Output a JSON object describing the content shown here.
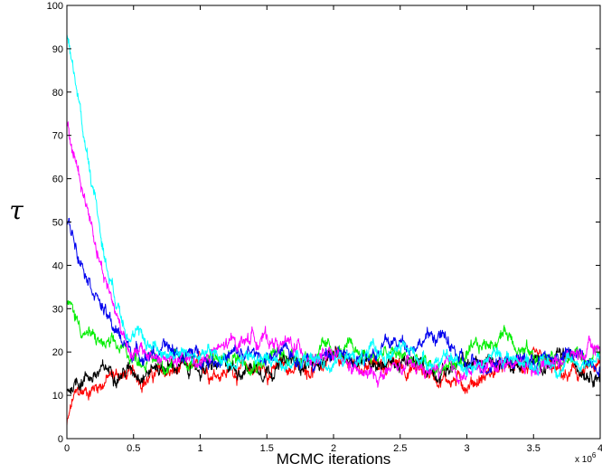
{
  "chart_data": {
    "type": "line",
    "xlabel": "MCMC iterations",
    "ylabel": "τ",
    "x_multiplier_label": "x 10",
    "x_multiplier_exponent": "6",
    "xlim": [
      0,
      4
    ],
    "ylim": [
      0,
      100
    ],
    "x_ticks": [
      0,
      0.5,
      1,
      1.5,
      2,
      2.5,
      3,
      3.5,
      4
    ],
    "x_tick_labels": [
      "0",
      "0.5",
      "1",
      "1.5",
      "2",
      "2.5",
      "3",
      "3.5",
      "4"
    ],
    "y_ticks": [
      0,
      10,
      20,
      30,
      40,
      50,
      60,
      70,
      80,
      90,
      100
    ],
    "y_tick_labels": [
      "0",
      "10",
      "20",
      "30",
      "40",
      "50",
      "60",
      "70",
      "80",
      "90",
      "100"
    ],
    "grid": false,
    "series": [
      {
        "color": "#ff0000",
        "x": [
          0,
          0.05,
          0.1,
          0.2,
          0.3,
          0.4,
          0.5,
          0.75,
          1,
          1.5,
          2,
          2.5,
          2.75,
          3,
          3.25,
          3.5,
          3.75,
          4
        ],
        "values": [
          3,
          9,
          10,
          12,
          14,
          15,
          14,
          15,
          16,
          16,
          17,
          17,
          15,
          13,
          16,
          17,
          14,
          16
        ]
      },
      {
        "color": "#000000",
        "x": [
          0,
          0.05,
          0.15,
          0.25,
          0.35,
          0.5,
          0.75,
          1,
          1.5,
          2,
          2.25,
          2.5,
          2.75,
          3,
          3.25,
          3.5,
          3.75,
          4
        ],
        "values": [
          11,
          13,
          15,
          15,
          16,
          16,
          17,
          16,
          17,
          18,
          19,
          17,
          16,
          17,
          18,
          17,
          18,
          16
        ]
      },
      {
        "color": "#00ee00",
        "x": [
          0,
          0.05,
          0.1,
          0.2,
          0.3,
          0.4,
          0.5,
          0.75,
          1,
          1.5,
          2,
          2.5,
          2.75,
          3,
          3.3,
          3.5,
          3.75,
          4
        ],
        "values": [
          31,
          29,
          26,
          23,
          21,
          20,
          19,
          18,
          18,
          19,
          20,
          19,
          16,
          18,
          25,
          19,
          18,
          20
        ]
      },
      {
        "color": "#0000ee",
        "x": [
          0,
          0.05,
          0.1,
          0.2,
          0.3,
          0.4,
          0.5,
          0.75,
          1,
          1.5,
          2,
          2.5,
          2.8,
          3,
          3.25,
          3.5,
          3.75,
          4
        ],
        "values": [
          50,
          47,
          43,
          36,
          28,
          23,
          20,
          20,
          19,
          19,
          19,
          22,
          24,
          16,
          19,
          18,
          19,
          18
        ]
      },
      {
        "color": "#ff00ff",
        "x": [
          0,
          0.05,
          0.1,
          0.2,
          0.3,
          0.4,
          0.5,
          0.75,
          1,
          1.4,
          2,
          2.25,
          2.5,
          3,
          3.25,
          3.5,
          3.75,
          4
        ],
        "values": [
          72,
          66,
          60,
          48,
          36,
          26,
          20,
          18,
          18,
          24,
          18,
          14,
          16,
          15,
          18,
          17,
          19,
          21
        ]
      },
      {
        "color": "#00ffff",
        "x": [
          0,
          0.05,
          0.1,
          0.2,
          0.3,
          0.4,
          0.5,
          0.75,
          1,
          1.5,
          2,
          2.5,
          3,
          3.25,
          3.5,
          3.75,
          4
        ],
        "values": [
          93,
          86,
          75,
          58,
          40,
          30,
          24,
          20,
          19,
          18,
          18,
          20,
          17,
          19,
          18,
          17,
          19
        ]
      }
    ]
  }
}
